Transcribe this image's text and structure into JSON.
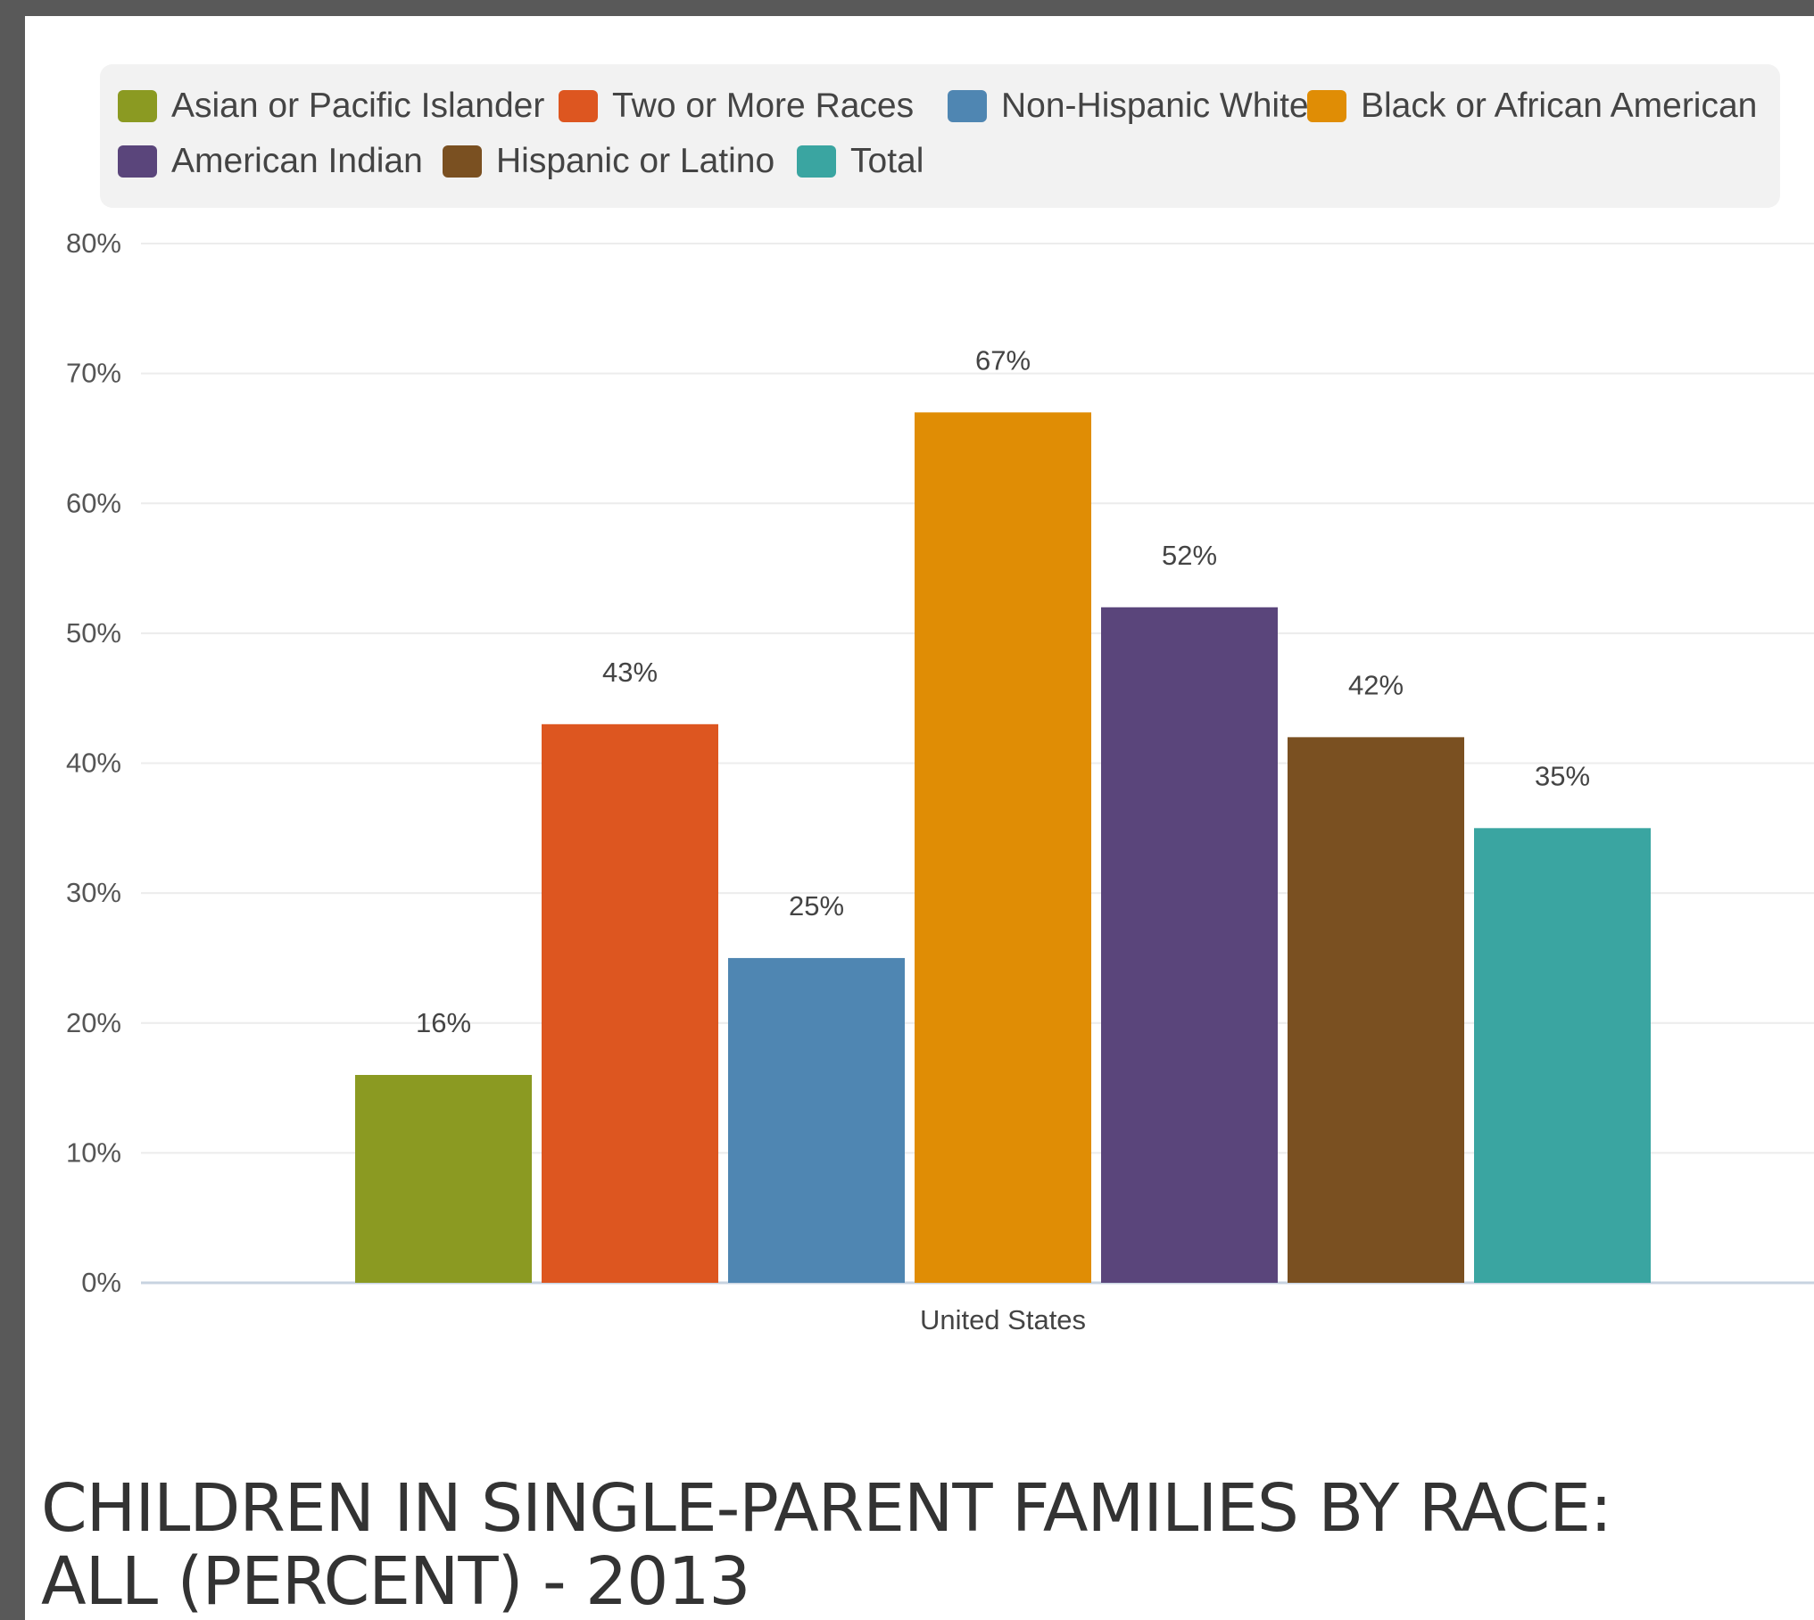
{
  "chart_data": {
    "type": "bar",
    "title": "CHILDREN IN SINGLE-PARENT FAMILIES BY RACE: ALL (PERCENT) - 2013",
    "categories": [
      "United States"
    ],
    "series": [
      {
        "name": "Asian or Pacific Islander",
        "values": [
          16
        ],
        "color": "#8b9a22"
      },
      {
        "name": "Two or More Races",
        "values": [
          43
        ],
        "color": "#dd5620"
      },
      {
        "name": "Non-Hispanic White",
        "values": [
          25
        ],
        "color": "#4f86b2"
      },
      {
        "name": "Black or African American",
        "values": [
          67
        ],
        "color": "#e08d05"
      },
      {
        "name": "American Indian",
        "values": [
          52
        ],
        "color": "#5a457b"
      },
      {
        "name": "Hispanic or Latino",
        "values": [
          42
        ],
        "color": "#7a5021"
      },
      {
        "name": "Total",
        "values": [
          35
        ],
        "color": "#3aa5a1"
      }
    ],
    "data_labels": [
      "16%",
      "43%",
      "25%",
      "67%",
      "52%",
      "42%",
      "35%"
    ],
    "y_ticks": [
      "0%",
      "10%",
      "20%",
      "30%",
      "40%",
      "50%",
      "60%",
      "70%",
      "80%"
    ],
    "ylim": [
      0,
      80
    ],
    "grid": true,
    "legend_position": "top"
  }
}
